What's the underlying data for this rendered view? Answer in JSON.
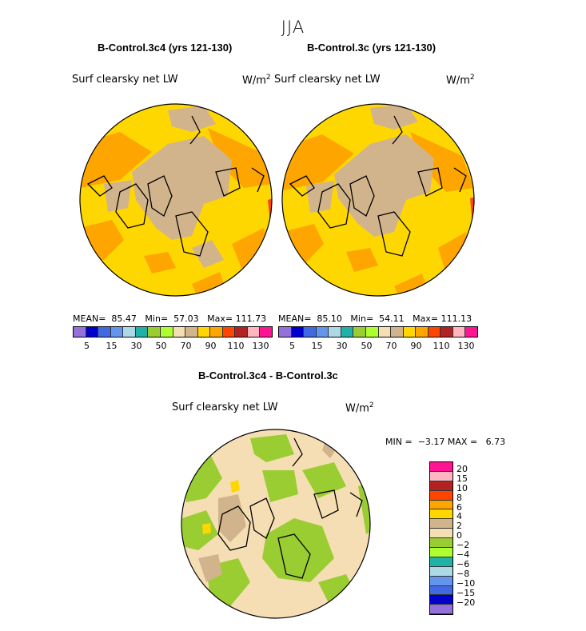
{
  "season": "JJA",
  "panels": [
    {
      "title": "B-Control.3c4 (yrs 121-130)",
      "field": "Surf clearsky net LW",
      "units": "W/m",
      "mean_label": "MEAN=",
      "mean": "85.47",
      "min_label": "Min=",
      "min": "57.03",
      "max_label": "Max=",
      "max": "111.73"
    },
    {
      "title": "B-Control.3c (yrs 121-130)",
      "field": "Surf clearsky net LW",
      "units": "W/m",
      "mean_label": "MEAN=",
      "mean": "85.10",
      "min_label": "Min=",
      "min": "54.11",
      "max_label": "Max=",
      "max": "111.13"
    }
  ],
  "colorbar": {
    "colors": [
      "#9370db",
      "#0000cd",
      "#4169e1",
      "#6495ed",
      "#add8e6",
      "#20b2aa",
      "#9acd32",
      "#adff2f",
      "#f5deb3",
      "#d2b48c",
      "#ffd700",
      "#ffa500",
      "#ff4500",
      "#b22222",
      "#ffb6c1",
      "#ff1493"
    ],
    "labels": [
      "5",
      "15",
      "30",
      "50",
      "70",
      "90",
      "110",
      "130"
    ]
  },
  "diff": {
    "title": "B-Control.3c4 - B-Control.3c",
    "field": "Surf clearsky net LW",
    "units": "W/m",
    "min_label": "MIN =",
    "min": "−3.17",
    "max_label": "MAX =",
    "max": "6.73",
    "colorbar_colors": [
      "#ff1493",
      "#ffb6c1",
      "#b22222",
      "#ff4500",
      "#ffa500",
      "#ffd700",
      "#d2b48c",
      "#f5deb3",
      "#9acd32",
      "#adff2f",
      "#20b2aa",
      "#add8e6",
      "#6495ed",
      "#4169e1",
      "#0000cd",
      "#9370db"
    ],
    "colorbar_labels": [
      "20",
      "15",
      "10",
      "8",
      "6",
      "4",
      "2",
      "0",
      "−2",
      "−4",
      "−6",
      "−8",
      "−10",
      "−15",
      "−20"
    ]
  },
  "unit_exponent": "2"
}
